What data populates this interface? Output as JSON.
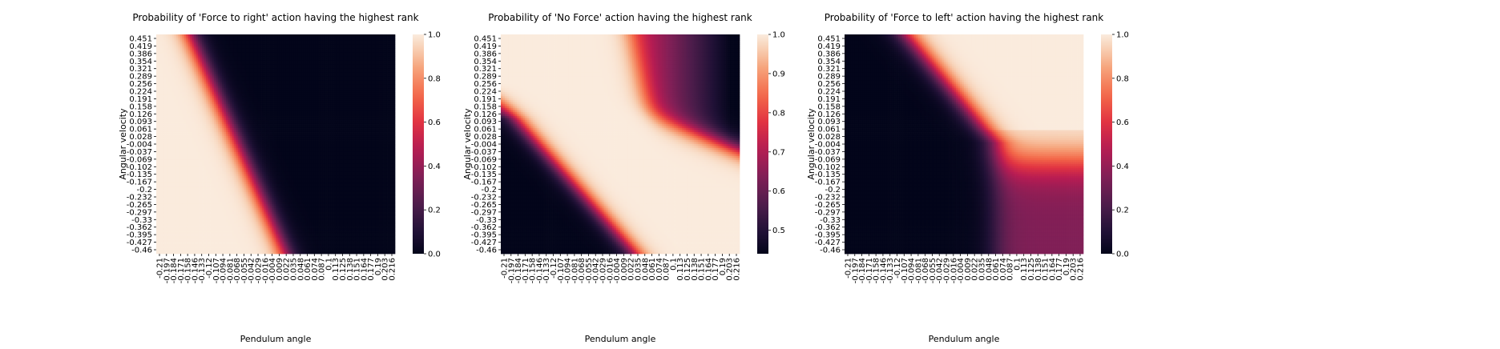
{
  "chart_data": [
    {
      "type": "heatmap",
      "title": "Probability of 'Force to right' action having the highest rank",
      "xlabel": "Pendulum angle",
      "ylabel": "Angular velocity",
      "x_ticks": [
        "-0.21",
        "-0.197",
        "-0.184",
        "-0.171",
        "-0.158",
        "-0.146",
        "-0.133",
        "-0.12",
        "-0.107",
        "-0.094",
        "-0.081",
        "-0.068",
        "-0.055",
        "-0.042",
        "-0.029",
        "-0.016",
        "-0.004",
        "0.009",
        "0.022",
        "0.035",
        "0.048",
        "0.061",
        "0.074",
        "0.087",
        "0.1",
        "0.113",
        "0.125",
        "0.138",
        "0.151",
        "0.164",
        "0.177",
        "0.19",
        "0.203",
        "0.216"
      ],
      "y_ticks": [
        "0.451",
        "0.419",
        "0.386",
        "0.354",
        "0.321",
        "0.289",
        "0.256",
        "0.224",
        "0.191",
        "0.158",
        "0.126",
        "0.093",
        "0.061",
        "0.028",
        "-0.004",
        "-0.037",
        "-0.069",
        "-0.102",
        "-0.135",
        "-0.167",
        "-0.2",
        "-0.232",
        "-0.265",
        "-0.297",
        "-0.33",
        "-0.362",
        "-0.395",
        "-0.427",
        "-0.46"
      ],
      "colorbar": {
        "min": 0.0,
        "max": 1.0,
        "ticks": [
          "0.0",
          "0.2",
          "0.4",
          "0.6",
          "0.8",
          "1.0"
        ]
      },
      "colormap": "rocket",
      "pattern": "Probability near 1 on the left (negative angle); diagonal transition band from top-left (~-0.15 at v=0.45) to bottom (~0.02 at v=-0.46); near 0 to the right"
    },
    {
      "type": "heatmap",
      "title": "Probability of 'No Force' action having the highest rank",
      "xlabel": "Pendulum angle",
      "ylabel": "Angular velocity",
      "x_ticks": [
        "-0.21",
        "-0.197",
        "-0.184",
        "-0.171",
        "-0.158",
        "-0.146",
        "-0.133",
        "-0.12",
        "-0.107",
        "-0.094",
        "-0.081",
        "-0.068",
        "-0.055",
        "-0.042",
        "-0.029",
        "-0.016",
        "-0.004",
        "0.009",
        "0.022",
        "0.035",
        "0.048",
        "0.061",
        "0.074",
        "0.087",
        "0.1",
        "0.113",
        "0.125",
        "0.138",
        "0.151",
        "0.164",
        "0.177",
        "0.19",
        "0.203",
        "0.216"
      ],
      "y_ticks": [
        "0.451",
        "0.419",
        "0.386",
        "0.354",
        "0.321",
        "0.289",
        "0.256",
        "0.224",
        "0.191",
        "0.158",
        "0.126",
        "0.093",
        "0.061",
        "0.028",
        "-0.004",
        "-0.037",
        "-0.069",
        "-0.102",
        "-0.135",
        "-0.167",
        "-0.2",
        "-0.232",
        "-0.265",
        "-0.297",
        "-0.33",
        "-0.362",
        "-0.395",
        "-0.427",
        "-0.46"
      ],
      "colorbar": {
        "min": 0.44,
        "max": 1.0,
        "ticks": [
          "0.5",
          "0.6",
          "0.7",
          "0.8",
          "0.9",
          "1.0"
        ]
      },
      "colormap": "rocket",
      "pattern": "Probability near 1 across most of the field; a low-probability wedge in the bottom-left corner and another low region in the top-right corner"
    },
    {
      "type": "heatmap",
      "title": "Probability of 'Force to left' action having the highest rank",
      "xlabel": "Pendulum angle",
      "ylabel": "Angular velocity",
      "x_ticks": [
        "-0.21",
        "-0.197",
        "-0.184",
        "-0.171",
        "-0.158",
        "-0.146",
        "-0.133",
        "-0.12",
        "-0.107",
        "-0.094",
        "-0.081",
        "-0.068",
        "-0.055",
        "-0.042",
        "-0.029",
        "-0.016",
        "-0.004",
        "0.009",
        "0.022",
        "0.035",
        "0.048",
        "0.061",
        "0.074",
        "0.087",
        "0.1",
        "0.113",
        "0.125",
        "0.138",
        "0.151",
        "0.164",
        "0.177",
        "0.19",
        "0.203",
        "0.216"
      ],
      "y_ticks": [
        "0.451",
        "0.419",
        "0.386",
        "0.354",
        "0.321",
        "0.289",
        "0.256",
        "0.224",
        "0.191",
        "0.158",
        "0.126",
        "0.093",
        "0.061",
        "0.028",
        "-0.004",
        "-0.037",
        "-0.069",
        "-0.102",
        "-0.135",
        "-0.167",
        "-0.2",
        "-0.232",
        "-0.265",
        "-0.297",
        "-0.33",
        "-0.362",
        "-0.395",
        "-0.427",
        "-0.46"
      ],
      "colorbar": {
        "min": 0.0,
        "max": 1.0,
        "ticks": [
          "0.0",
          "0.2",
          "0.4",
          "0.6",
          "0.8",
          "1.0"
        ]
      },
      "colormap": "rocket",
      "pattern": "Probability near 0 on the left; rising to near 1 in the top-right region beyond a diagonal band; moderate values (~0.3-0.5) in the bottom-right"
    }
  ]
}
